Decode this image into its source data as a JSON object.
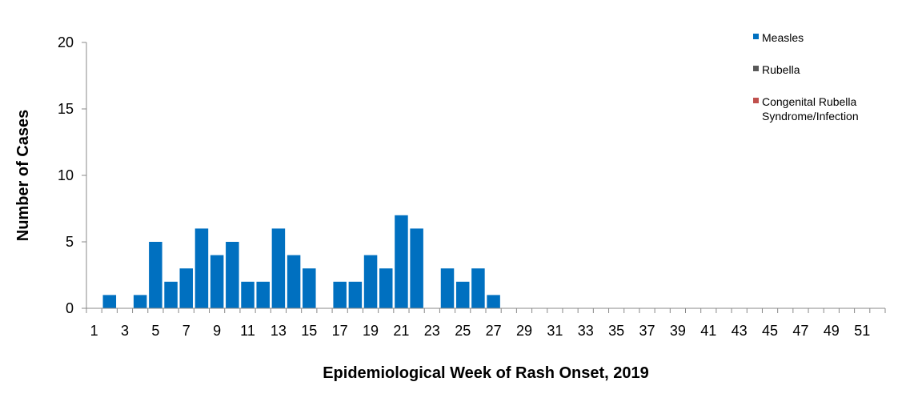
{
  "chart_data": {
    "type": "bar",
    "xlabel": "Epidemiological Week of Rash Onset, 2019",
    "ylabel": "Number of Cases",
    "ylim": [
      0,
      20
    ],
    "yticks": [
      "0",
      "5",
      "10",
      "15",
      "20"
    ],
    "x_tick_labels": [
      "1",
      "3",
      "5",
      "7",
      "9",
      "11",
      "13",
      "15",
      "17",
      "19",
      "21",
      "23",
      "25",
      "27",
      "29",
      "31",
      "33",
      "35",
      "37",
      "39",
      "41",
      "43",
      "45",
      "47",
      "49",
      "51"
    ],
    "categories": [
      1,
      2,
      3,
      4,
      5,
      6,
      7,
      8,
      9,
      10,
      11,
      12,
      13,
      14,
      15,
      16,
      17,
      18,
      19,
      20,
      21,
      22,
      23,
      24,
      25,
      26,
      27,
      28,
      29,
      30,
      31,
      32,
      33,
      34,
      35,
      36,
      37,
      38,
      39,
      40,
      41,
      42,
      43,
      44,
      45,
      46,
      47,
      48,
      49,
      50,
      51,
      52
    ],
    "series": [
      {
        "name": "Measles",
        "color": "#0070c0",
        "values": [
          0,
          1,
          0,
          1,
          5,
          2,
          3,
          6,
          4,
          5,
          2,
          2,
          6,
          4,
          3,
          0,
          2,
          2,
          4,
          3,
          7,
          6,
          0,
          3,
          2,
          3,
          1,
          0,
          0,
          0,
          0,
          0,
          0,
          0,
          0,
          0,
          0,
          0,
          0,
          0,
          0,
          0,
          0,
          0,
          0,
          0,
          0,
          0,
          0,
          0,
          0,
          0
        ]
      },
      {
        "name": "Rubella",
        "color": "#595959",
        "values": [
          0,
          0,
          0,
          0,
          0,
          0,
          0,
          0,
          0,
          0,
          0,
          0,
          0,
          0,
          0,
          0,
          0,
          0,
          0,
          0,
          0,
          0,
          0,
          0,
          0,
          0,
          0,
          0,
          0,
          0,
          0,
          0,
          0,
          0,
          0,
          0,
          0,
          0,
          0,
          0,
          0,
          0,
          0,
          0,
          0,
          0,
          0,
          0,
          0,
          0,
          0,
          0
        ]
      },
      {
        "name": "Congenital Rubella Syndrome/Infection",
        "name_lines": [
          "Congenital Rubella",
          "Syndrome/Infection"
        ],
        "color": "#c0504d",
        "values": [
          0,
          0,
          0,
          0,
          0,
          0,
          0,
          0,
          0,
          0,
          0,
          0,
          0,
          0,
          0,
          0,
          0,
          0,
          0,
          0,
          0,
          0,
          0,
          0,
          0,
          0,
          0,
          0,
          0,
          0,
          0,
          0,
          0,
          0,
          0,
          0,
          0,
          0,
          0,
          0,
          0,
          0,
          0,
          0,
          0,
          0,
          0,
          0,
          0,
          0,
          0,
          0
        ]
      }
    ],
    "grid": false,
    "legend_position": "top-right"
  }
}
